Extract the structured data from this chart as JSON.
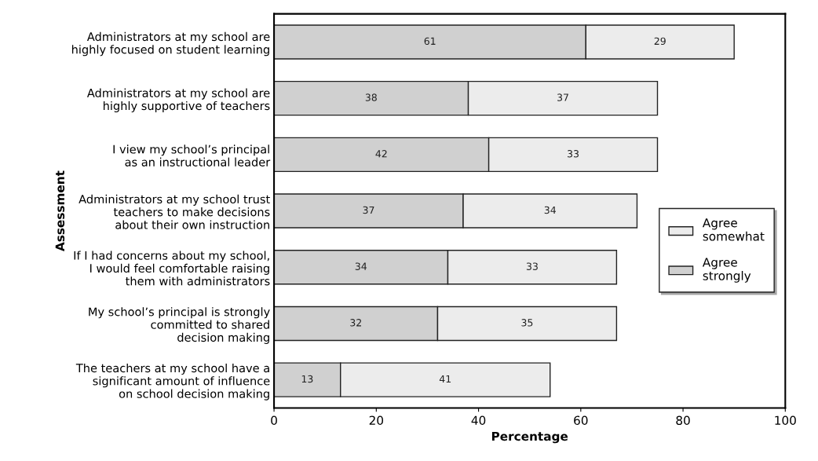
{
  "chart_data": {
    "type": "bar",
    "orientation": "horizontal",
    "stacked": true,
    "data_labels": true,
    "xlabel": "Percentage",
    "ylabel": "Assessment",
    "categories": [
      "Administrators at my school are\nhighly focused on student learning",
      "Administrators at my school are\nhighly supportive of teachers",
      "I view my school’s principal\nas an instructional leader",
      "Administrators at my school trust\nteachers to make decisions\nabout their own instruction",
      "If I had concerns about my school,\nI would feel comfortable raising\nthem with administrators",
      "My school’s principal is strongly\ncommitted to shared\ndecision making",
      "The teachers at my school have a\nsignificant amount of influence\non school decision making"
    ],
    "series": [
      {
        "name": "Agree strongly",
        "color": "#d0d0d0",
        "values": [
          61,
          38,
          42,
          37,
          34,
          32,
          13
        ]
      },
      {
        "name": "Agree somewhat",
        "color": "#ececec",
        "values": [
          29,
          37,
          33,
          34,
          33,
          35,
          41
        ]
      }
    ],
    "xlim": [
      0,
      100
    ],
    "xticks": [
      0,
      20,
      40,
      60,
      80,
      100
    ],
    "grid": false,
    "legend": "right"
  }
}
